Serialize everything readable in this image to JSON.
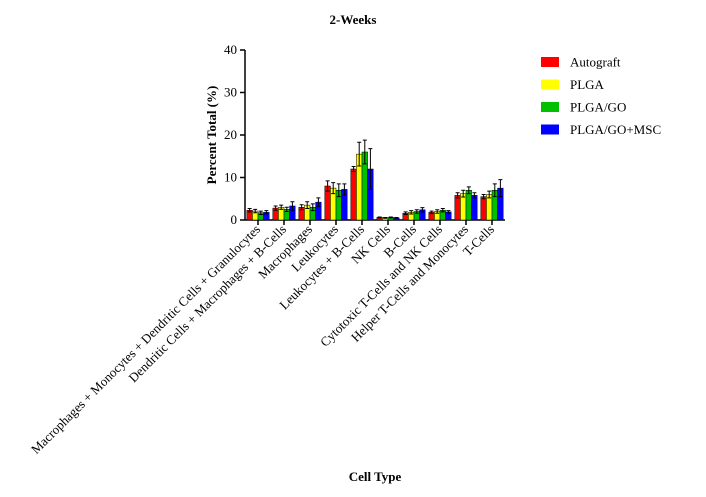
{
  "chart_data": {
    "type": "bar",
    "title": "2-Weeks",
    "x_label": "Cell Type",
    "y_label": "Percent Total (%)",
    "categories": [
      "Macrophages + Monocytes + Dendritic Cells + Granulocytes",
      "Dendritic Cells + Macrophages + B-Cells",
      "Macrophages",
      "Leukocytes",
      "Leukocytes + B-Cells",
      "NK Cells",
      "B-Cells",
      "Cytotoxic T-Cells and NK Cells",
      "Helper T-Cells and Monocytes",
      "T-Cells"
    ],
    "series": [
      {
        "name": "Autograft",
        "color": "#ff0000",
        "values": [
          2.3,
          2.8,
          3.0,
          8.0,
          12.0,
          0.6,
          1.6,
          1.8,
          5.8,
          5.5
        ],
        "errors": [
          0.4,
          0.5,
          0.6,
          1.2,
          0.6,
          0.1,
          0.3,
          0.3,
          0.6,
          0.5
        ]
      },
      {
        "name": "PLGA",
        "color": "#ffff00",
        "values": [
          2.1,
          3.0,
          3.5,
          7.5,
          15.5,
          0.5,
          1.8,
          2.0,
          6.2,
          6.0
        ],
        "errors": [
          0.4,
          0.5,
          0.8,
          1.3,
          2.8,
          0.1,
          0.4,
          0.4,
          0.8,
          0.8
        ]
      },
      {
        "name": "PLGA/GO",
        "color": "#00c000",
        "values": [
          1.7,
          2.5,
          3.0,
          7.0,
          16.0,
          0.6,
          2.0,
          2.3,
          7.0,
          7.0
        ],
        "errors": [
          0.4,
          0.5,
          0.8,
          1.5,
          2.8,
          0.1,
          0.4,
          0.4,
          0.8,
          1.5
        ]
      },
      {
        "name": "PLGA/GO+MSC",
        "color": "#0000ff",
        "values": [
          1.8,
          3.3,
          4.2,
          7.2,
          12.0,
          0.5,
          2.4,
          1.9,
          5.8,
          7.5
        ],
        "errors": [
          0.4,
          1.0,
          1.0,
          1.3,
          4.8,
          0.1,
          0.5,
          0.3,
          0.6,
          2.0
        ]
      }
    ],
    "ylim": [
      0,
      40
    ],
    "yticks": [
      0,
      10,
      20,
      30,
      40
    ],
    "legend": "right"
  }
}
